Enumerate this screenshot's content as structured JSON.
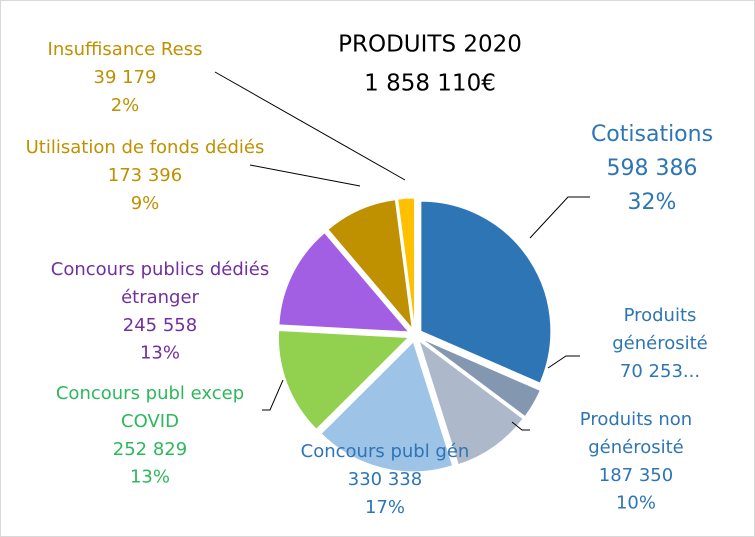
{
  "chart_data": {
    "type": "pie",
    "title": "PRODUITS 2020",
    "subtitle": "1 858 110€",
    "categories": [
      "Cotisations",
      "Produits générosité",
      "Produits non générosité",
      "Concours publ gén",
      "Concours publ excep COVID",
      "Concours publics dédiés étranger",
      "Utilisation de fonds dédiés",
      "Insuffisance Ress"
    ],
    "values": [
      598386,
      70253,
      187350,
      330338,
      252829,
      245558,
      173396,
      39179
    ],
    "value_labels": [
      "598 386",
      "70 253...",
      "187 350",
      "330 338",
      "252 829",
      "245 558",
      "173 396",
      "39 179"
    ],
    "percent_labels": [
      "32%",
      null,
      "10%",
      "17%",
      "13%",
      "13%",
      "9%",
      "2%"
    ],
    "colors": [
      "#2e75b6",
      "#8497b0",
      "#adb9ca",
      "#9dc3e6",
      "#92d050",
      "#a35fe3",
      "#bf9000",
      "#ffc000"
    ],
    "label_colors": [
      "#2e75b6",
      "#2e75b6",
      "#2e75b6",
      "#2e75b6",
      "#2eb85c",
      "#7030a0",
      "#bf9000",
      "#bf9000"
    ]
  }
}
